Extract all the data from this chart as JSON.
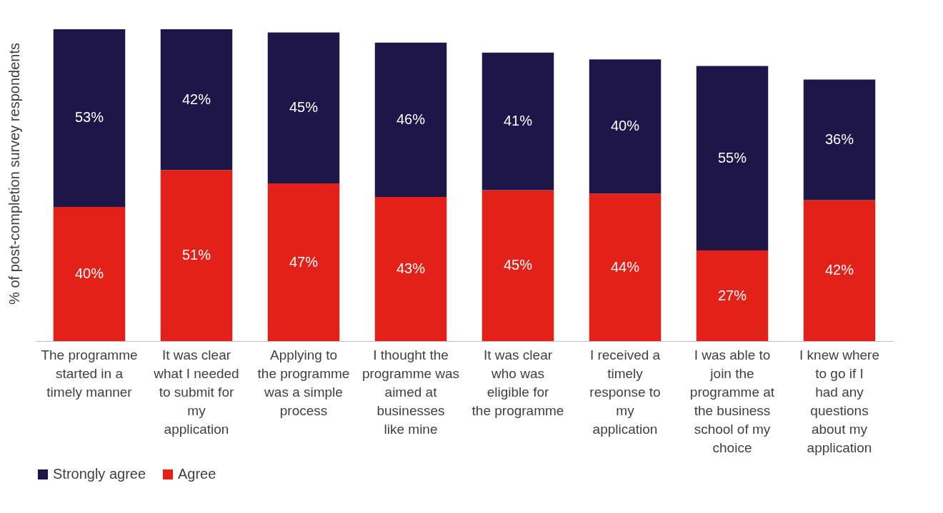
{
  "chart_data": {
    "type": "bar",
    "stacked": true,
    "ylabel": "% of post-completion survey respondents",
    "tick_labels": "x",
    "legend": "bottom",
    "grid": false,
    "categories": [
      "The programme started in a timely manner",
      "It was clear what I needed to submit for my application",
      "Applying to the programme was a simple process",
      "I thought the programme was aimed at businesses like mine",
      "It was clear who was eligible for the programme",
      "I received a timely response to my application",
      "I was able to join the programme at the business school of my choice",
      "I knew where to go if I had any questions about my application"
    ],
    "series": [
      {
        "name": "Agree",
        "color": "#e32119",
        "values": [
          40,
          51,
          47,
          43,
          45,
          44,
          27,
          42
        ],
        "value_labels": [
          "40%",
          "51%",
          "47%",
          "43%",
          "45%",
          "44%",
          "27%",
          "42%"
        ]
      },
      {
        "name": "Strongly agree",
        "color": "#1e1548",
        "values": [
          53,
          42,
          45,
          46,
          41,
          40,
          55,
          36
        ],
        "value_labels": [
          "53%",
          "42%",
          "45%",
          "46%",
          "41%",
          "40%",
          "55%",
          "36%"
        ]
      }
    ]
  }
}
